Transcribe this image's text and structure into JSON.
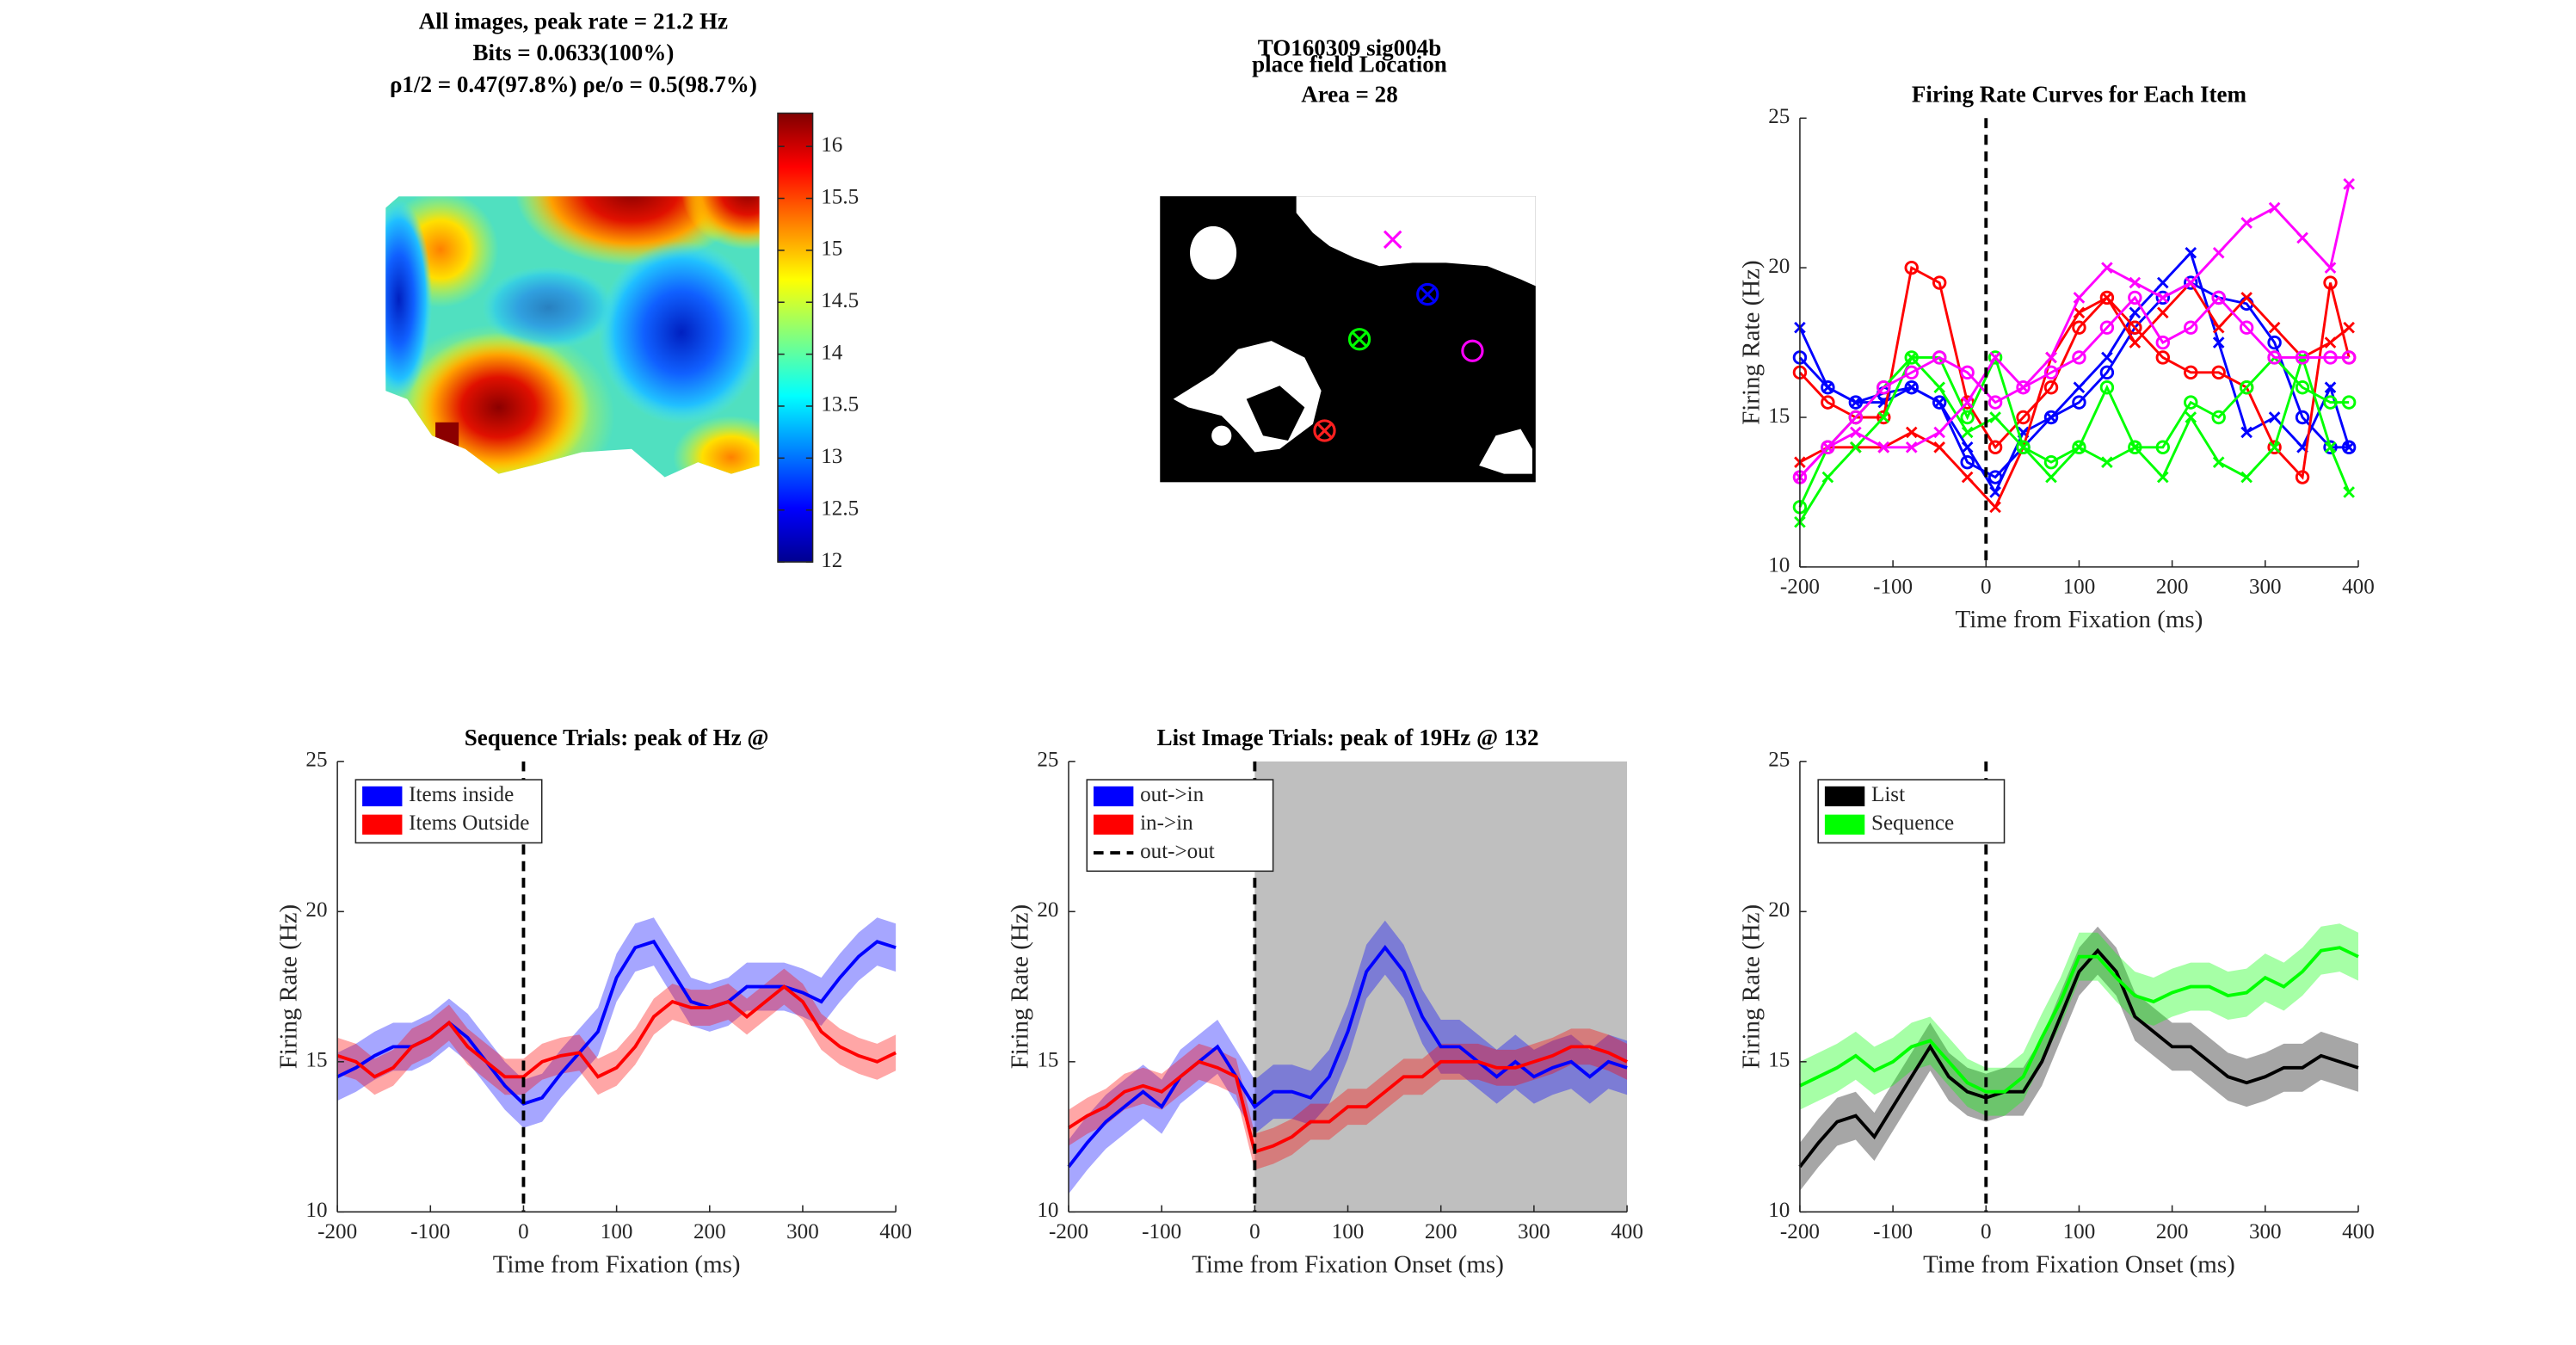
{
  "chart_data": [
    {
      "type": "heatmap",
      "title": [
        "All images, peak rate = 21.2 Hz",
        "Bits = 0.0633(100%)",
        "ρ1/2 = 0.47(97.8%) ρe/o = 0.5(98.7%)"
      ],
      "clim": [
        12,
        16.32
      ],
      "cticks": [
        12,
        {
          "value": 12.5,
          "label": "12.5"
        },
        13,
        {
          "value": 13.5,
          "label": "13.5"
        },
        14,
        {
          "value": 14.5,
          "label": "14.5"
        },
        15,
        {
          "value": 15.5,
          "label": "15.5"
        },
        16
      ],
      "colormap": "jet"
    },
    {
      "type": "image",
      "title": [
        "TO160309 sig004b",
        "place field Location",
        "Area = 28"
      ]
    },
    {
      "type": "line",
      "title": [
        "Firing Rate Curves for Each Item"
      ],
      "xlabel": "Time from Fixation (ms)",
      "ylabel": "Firing Rate (Hz)",
      "x": [
        -200,
        -170,
        -140,
        -110,
        -80,
        -50,
        -20,
        10,
        40,
        70,
        100,
        130,
        160,
        190,
        220,
        250,
        280,
        310,
        340,
        370,
        390
      ],
      "xlim": [
        -200,
        400
      ],
      "xticks": [
        -200,
        -100,
        0,
        100,
        200,
        300,
        400
      ],
      "ylim": [
        10,
        25
      ],
      "yticks": [
        10,
        15,
        20,
        25
      ],
      "vline_x": 0,
      "series": [
        {
          "color": "#0000ff",
          "marker": "o",
          "values": [
            17,
            16,
            15.5,
            15.8,
            16,
            15.5,
            13.5,
            13,
            14,
            15,
            15.5,
            16.5,
            18,
            19,
            19.5,
            19,
            18.8,
            17.5,
            15,
            14,
            14
          ]
        },
        {
          "color": "#0000ff",
          "marker": "x",
          "values": [
            18,
            16,
            15.5,
            15.5,
            16,
            15.5,
            14,
            12.5,
            14.5,
            15,
            16,
            17,
            18.5,
            19.5,
            20.5,
            17.5,
            14.5,
            15,
            14,
            16,
            14
          ]
        },
        {
          "color": "#ff0000",
          "marker": "o",
          "values": [
            16.5,
            15.5,
            15,
            15,
            20,
            19.5,
            15.5,
            14,
            15,
            16,
            18,
            19,
            18,
            17,
            16.5,
            16.5,
            16,
            14,
            13,
            19.5,
            17
          ]
        },
        {
          "color": "#ff0000",
          "marker": "x",
          "values": [
            13.5,
            14,
            14,
            14,
            14.5,
            14,
            13,
            12,
            14,
            17,
            18.5,
            19,
            17.5,
            18.5,
            19.5,
            18,
            19,
            18,
            17,
            17.5,
            18
          ]
        },
        {
          "color": "#00ff00",
          "marker": "o",
          "values": [
            12,
            14,
            15,
            16,
            17,
            17,
            15,
            17,
            14,
            13.5,
            14,
            16,
            14,
            14,
            15.5,
            15,
            16,
            17,
            16,
            15.5,
            15.5
          ]
        },
        {
          "color": "#00ff00",
          "marker": "x",
          "values": [
            11.5,
            13,
            14,
            15,
            17,
            16,
            14.5,
            15,
            14,
            13,
            14,
            13.5,
            14,
            13,
            15,
            13.5,
            13,
            14,
            17,
            14,
            12.5
          ]
        },
        {
          "color": "#ff00ff",
          "marker": "o",
          "values": [
            13,
            14,
            15,
            16,
            16.5,
            17,
            16.5,
            15.5,
            16,
            16.5,
            17,
            18,
            19,
            17.5,
            18,
            19,
            18,
            17,
            17,
            17,
            17
          ]
        },
        {
          "color": "#ff00ff",
          "marker": "x",
          "values": [
            13,
            14,
            14.5,
            14,
            14,
            14.5,
            15.5,
            17,
            16,
            17,
            19,
            20,
            19.5,
            19,
            19.5,
            20.5,
            21.5,
            22,
            21,
            20,
            22.8
          ]
        }
      ]
    },
    {
      "type": "line",
      "title": [
        "Sequence Trials: peak of Hz @"
      ],
      "xlabel": "Time from Fixation (ms)",
      "ylabel": "Firing Rate (Hz)",
      "x": [
        -200,
        -180,
        -160,
        -140,
        -120,
        -100,
        -80,
        -60,
        -40,
        -20,
        0,
        20,
        40,
        60,
        80,
        100,
        120,
        140,
        160,
        180,
        200,
        220,
        240,
        260,
        280,
        300,
        320,
        340,
        360,
        380,
        400
      ],
      "xlim": [
        -200,
        400
      ],
      "xticks": [
        -200,
        -100,
        0,
        100,
        200,
        300,
        400
      ],
      "ylim": [
        10,
        25
      ],
      "yticks": [
        10,
        15,
        20,
        25
      ],
      "vline_x": 0,
      "legend": "upper left",
      "series": [
        {
          "name": "Items inside",
          "color": "#0000ff",
          "error": 0.8,
          "values": [
            14.5,
            14.8,
            15.2,
            15.5,
            15.5,
            15.8,
            16.3,
            15.8,
            15,
            14.2,
            13.6,
            13.8,
            14.6,
            15.3,
            16,
            17.8,
            18.8,
            19,
            18,
            17,
            16.8,
            17,
            17.5,
            17.5,
            17.5,
            17.3,
            17,
            17.8,
            18.5,
            19,
            18.8
          ]
        },
        {
          "name": "Items Outside",
          "color": "#ff0000",
          "error": 0.6,
          "values": [
            15.2,
            15,
            14.5,
            14.8,
            15.5,
            15.8,
            16.3,
            15.5,
            15,
            14.5,
            14.5,
            15,
            15.2,
            15.3,
            14.5,
            14.8,
            15.5,
            16.5,
            17,
            16.8,
            16.8,
            17,
            16.5,
            17,
            17.5,
            17,
            16,
            15.5,
            15.2,
            15,
            15.3
          ]
        }
      ]
    },
    {
      "type": "line",
      "title": [
        "List Image Trials: peak of 19Hz @ 132"
      ],
      "xlabel": "Time from Fixation Onset (ms)",
      "ylabel": "Firing Rate (Hz)",
      "x": [
        -200,
        -180,
        -160,
        -140,
        -120,
        -100,
        -80,
        -60,
        -40,
        -20,
        0,
        20,
        40,
        60,
        80,
        100,
        120,
        140,
        160,
        180,
        200,
        220,
        240,
        260,
        280,
        300,
        320,
        340,
        360,
        380,
        400
      ],
      "xlim": [
        -200,
        400
      ],
      "xticks": [
        -200,
        -100,
        0,
        100,
        200,
        300,
        400
      ],
      "ylim": [
        10,
        25
      ],
      "yticks": [
        10,
        15,
        20,
        25
      ],
      "vline_x": 0,
      "vline_name": "out->out",
      "shaded_region": [
        0,
        400
      ],
      "legend": "upper left",
      "series": [
        {
          "name": "out->in",
          "color": "#0000ff",
          "error": 0.9,
          "values": [
            11.5,
            12.3,
            13,
            13.5,
            14,
            13.5,
            14.5,
            15,
            15.5,
            14.5,
            13.5,
            14,
            14,
            13.8,
            14.5,
            16,
            18,
            18.8,
            18,
            16.5,
            15.5,
            15.5,
            15,
            14.5,
            15,
            14.5,
            14.8,
            15,
            14.5,
            15,
            14.8
          ]
        },
        {
          "name": "in->in",
          "color": "#ff0000",
          "error": 0.6,
          "values": [
            12.8,
            13.2,
            13.5,
            14,
            14.2,
            14,
            14.5,
            15,
            14.8,
            14.5,
            12,
            12.2,
            12.5,
            13,
            13,
            13.5,
            13.5,
            14,
            14.5,
            14.5,
            15,
            15,
            15,
            14.8,
            14.8,
            15,
            15.2,
            15.5,
            15.5,
            15.3,
            15
          ]
        }
      ]
    },
    {
      "type": "line",
      "title": [],
      "xlabel": "Time from Fixation Onset (ms)",
      "ylabel": "Firing Rate (Hz)",
      "x": [
        -200,
        -180,
        -160,
        -140,
        -120,
        -100,
        -80,
        -60,
        -40,
        -20,
        0,
        20,
        40,
        60,
        80,
        100,
        120,
        140,
        160,
        180,
        200,
        220,
        240,
        260,
        280,
        300,
        320,
        340,
        360,
        380,
        400
      ],
      "xlim": [
        -200,
        400
      ],
      "xticks": [
        -200,
        -100,
        0,
        100,
        200,
        300,
        400
      ],
      "ylim": [
        10,
        25
      ],
      "yticks": [
        10,
        15,
        20,
        25
      ],
      "vline_x": 0,
      "legend": "upper left",
      "series": [
        {
          "name": "List",
          "color": "#000000",
          "error": 0.8,
          "values": [
            11.5,
            12.3,
            13,
            13.2,
            12.5,
            13.5,
            14.5,
            15.5,
            14.5,
            14,
            13.8,
            14,
            14,
            15,
            16.5,
            18,
            18.7,
            18,
            16.5,
            16,
            15.5,
            15.5,
            15,
            14.5,
            14.3,
            14.5,
            14.8,
            14.8,
            15.2,
            15,
            14.8
          ]
        },
        {
          "name": "Sequence",
          "color": "#00ff00",
          "error": 0.8,
          "values": [
            14.2,
            14.5,
            14.8,
            15.2,
            14.7,
            15,
            15.5,
            15.7,
            15,
            14.3,
            14,
            14,
            14.5,
            15.8,
            17,
            18.5,
            18.5,
            17.8,
            17.2,
            17,
            17.3,
            17.5,
            17.5,
            17.2,
            17.3,
            17.8,
            17.5,
            18,
            18.7,
            18.8,
            18.5
          ]
        }
      ]
    }
  ]
}
